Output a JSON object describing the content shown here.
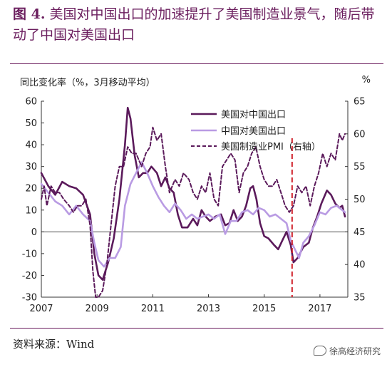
{
  "title": {
    "lead": "图 4.",
    "text": "美国对中国出口的加速提升了美国制造业景气，随后带动了中国对美国出口"
  },
  "source": "资料来源：Wind",
  "watermark": "徐高经济研究",
  "chart_data": {
    "type": "line",
    "left_axis_label": "同比变化率（%，3月移动平均）",
    "right_axis_label": "%",
    "ylim_left": [
      -30,
      60
    ],
    "yticks_left": [
      -30,
      -20,
      -10,
      0,
      10,
      20,
      30,
      40,
      50,
      60
    ],
    "ylim_right": [
      35,
      65
    ],
    "yticks_right": [
      35,
      40,
      45,
      50,
      55,
      60,
      65
    ],
    "xlim": [
      2007,
      2018
    ],
    "xticks": [
      "2007",
      "2009",
      "2011",
      "2013",
      "2015",
      "2017"
    ],
    "grid": false,
    "legend_position": "top-center",
    "vline": {
      "x": 2016.0,
      "color": "#d0202a",
      "style": "dashed"
    },
    "series": [
      {
        "name": "美国对中国出口",
        "axis": "left",
        "color": "#5b1a5b",
        "style": "solid",
        "points": [
          [
            2007.0,
            27
          ],
          [
            2007.25,
            21
          ],
          [
            2007.5,
            17
          ],
          [
            2007.75,
            23
          ],
          [
            2008.0,
            21
          ],
          [
            2008.25,
            20
          ],
          [
            2008.5,
            17
          ],
          [
            2008.75,
            8
          ],
          [
            2008.9,
            -10
          ],
          [
            2009.05,
            -20
          ],
          [
            2009.2,
            -22
          ],
          [
            2009.4,
            -14
          ],
          [
            2009.6,
            -3
          ],
          [
            2009.8,
            15
          ],
          [
            2010.0,
            40
          ],
          [
            2010.1,
            57
          ],
          [
            2010.2,
            52
          ],
          [
            2010.35,
            35
          ],
          [
            2010.5,
            25
          ],
          [
            2010.65,
            27
          ],
          [
            2010.8,
            27
          ],
          [
            2010.95,
            30
          ],
          [
            2011.15,
            27
          ],
          [
            2011.3,
            21
          ],
          [
            2011.45,
            25
          ],
          [
            2011.6,
            20
          ],
          [
            2011.75,
            18
          ],
          [
            2011.9,
            8
          ],
          [
            2012.05,
            2
          ],
          [
            2012.25,
            2
          ],
          [
            2012.45,
            6
          ],
          [
            2012.6,
            3
          ],
          [
            2012.75,
            10
          ],
          [
            2012.9,
            7
          ],
          [
            2013.05,
            5
          ],
          [
            2013.25,
            7
          ],
          [
            2013.45,
            8
          ],
          [
            2013.6,
            3
          ],
          [
            2013.75,
            4
          ],
          [
            2013.9,
            10
          ],
          [
            2014.05,
            5
          ],
          [
            2014.2,
            7
          ],
          [
            2014.35,
            12
          ],
          [
            2014.5,
            20
          ],
          [
            2014.6,
            21
          ],
          [
            2014.72,
            15
          ],
          [
            2014.85,
            4
          ],
          [
            2015.0,
            -2
          ],
          [
            2015.15,
            -3
          ],
          [
            2015.35,
            -6
          ],
          [
            2015.5,
            -8
          ],
          [
            2015.65,
            -4
          ],
          [
            2015.8,
            0
          ],
          [
            2015.95,
            -6
          ],
          [
            2016.05,
            -14
          ],
          [
            2016.2,
            -12
          ],
          [
            2016.4,
            -7
          ],
          [
            2016.6,
            -5
          ],
          [
            2016.75,
            2
          ],
          [
            2016.9,
            7
          ],
          [
            2017.05,
            13
          ],
          [
            2017.25,
            19
          ],
          [
            2017.4,
            17
          ],
          [
            2017.55,
            13
          ],
          [
            2017.7,
            11
          ],
          [
            2017.8,
            12
          ],
          [
            2017.9,
            7
          ]
        ]
      },
      {
        "name": "中国对美国出口",
        "axis": "left",
        "color": "#b99be3",
        "style": "solid",
        "points": [
          [
            2007.0,
            22
          ],
          [
            2007.25,
            18
          ],
          [
            2007.5,
            14
          ],
          [
            2007.75,
            12
          ],
          [
            2008.0,
            8
          ],
          [
            2008.25,
            12
          ],
          [
            2008.5,
            8
          ],
          [
            2008.75,
            5
          ],
          [
            2008.9,
            -5
          ],
          [
            2009.05,
            -13
          ],
          [
            2009.25,
            -16
          ],
          [
            2009.45,
            -12
          ],
          [
            2009.65,
            -12
          ],
          [
            2009.85,
            -7
          ],
          [
            2010.0,
            12
          ],
          [
            2010.2,
            22
          ],
          [
            2010.4,
            27
          ],
          [
            2010.6,
            32
          ],
          [
            2010.8,
            27
          ],
          [
            2011.0,
            21
          ],
          [
            2011.2,
            16
          ],
          [
            2011.4,
            12
          ],
          [
            2011.6,
            9
          ],
          [
            2011.8,
            13
          ],
          [
            2012.0,
            10
          ],
          [
            2012.2,
            6
          ],
          [
            2012.4,
            8
          ],
          [
            2012.6,
            6
          ],
          [
            2012.8,
            7
          ],
          [
            2013.0,
            8
          ],
          [
            2013.2,
            6
          ],
          [
            2013.4,
            8
          ],
          [
            2013.6,
            -1
          ],
          [
            2013.8,
            5
          ],
          [
            2014.0,
            5
          ],
          [
            2014.2,
            9
          ],
          [
            2014.4,
            10
          ],
          [
            2014.6,
            8
          ],
          [
            2014.8,
            11
          ],
          [
            2015.0,
            10
          ],
          [
            2015.2,
            7
          ],
          [
            2015.4,
            8
          ],
          [
            2015.6,
            6
          ],
          [
            2015.8,
            4
          ],
          [
            2015.95,
            -4
          ],
          [
            2016.1,
            -8
          ],
          [
            2016.25,
            -12
          ],
          [
            2016.4,
            -5
          ],
          [
            2016.6,
            -2
          ],
          [
            2016.8,
            3
          ],
          [
            2017.0,
            9
          ],
          [
            2017.2,
            8
          ],
          [
            2017.4,
            11
          ],
          [
            2017.6,
            12
          ],
          [
            2017.8,
            10
          ],
          [
            2017.9,
            9
          ]
        ]
      },
      {
        "name": "美国制造业PMI（右轴）",
        "axis": "right",
        "color": "#5b1a5b",
        "style": "dashed",
        "points": [
          [
            2007.0,
            50
          ],
          [
            2007.1,
            52
          ],
          [
            2007.2,
            49
          ],
          [
            2007.35,
            52
          ],
          [
            2007.5,
            51
          ],
          [
            2007.65,
            51
          ],
          [
            2007.8,
            50
          ],
          [
            2008.0,
            49
          ],
          [
            2008.15,
            48
          ],
          [
            2008.3,
            49
          ],
          [
            2008.45,
            49
          ],
          [
            2008.6,
            50
          ],
          [
            2008.75,
            46
          ],
          [
            2008.85,
            39
          ],
          [
            2008.95,
            35
          ],
          [
            2009.05,
            35
          ],
          [
            2009.2,
            36
          ],
          [
            2009.35,
            40
          ],
          [
            2009.5,
            46
          ],
          [
            2009.65,
            52
          ],
          [
            2009.8,
            55
          ],
          [
            2009.95,
            55
          ],
          [
            2010.1,
            58
          ],
          [
            2010.25,
            57
          ],
          [
            2010.4,
            57
          ],
          [
            2010.6,
            55
          ],
          [
            2010.75,
            57
          ],
          [
            2010.9,
            58
          ],
          [
            2011.0,
            61
          ],
          [
            2011.15,
            59
          ],
          [
            2011.3,
            60
          ],
          [
            2011.45,
            55
          ],
          [
            2011.6,
            51
          ],
          [
            2011.8,
            53
          ],
          [
            2011.95,
            52
          ],
          [
            2012.1,
            54
          ],
          [
            2012.3,
            53
          ],
          [
            2012.45,
            51
          ],
          [
            2012.6,
            50
          ],
          [
            2012.75,
            52
          ],
          [
            2012.9,
            51
          ],
          [
            2013.05,
            54
          ],
          [
            2013.2,
            50
          ],
          [
            2013.35,
            49
          ],
          [
            2013.5,
            55
          ],
          [
            2013.65,
            56
          ],
          [
            2013.8,
            57
          ],
          [
            2013.95,
            56
          ],
          [
            2014.1,
            51
          ],
          [
            2014.25,
            54
          ],
          [
            2014.4,
            55
          ],
          [
            2014.55,
            57
          ],
          [
            2014.7,
            58
          ],
          [
            2014.85,
            55
          ],
          [
            2015.0,
            53
          ],
          [
            2015.15,
            52
          ],
          [
            2015.3,
            52
          ],
          [
            2015.45,
            53
          ],
          [
            2015.6,
            51
          ],
          [
            2015.75,
            49
          ],
          [
            2015.9,
            48
          ],
          [
            2016.05,
            49
          ],
          [
            2016.2,
            52
          ],
          [
            2016.35,
            51
          ],
          [
            2016.5,
            52
          ],
          [
            2016.65,
            49
          ],
          [
            2016.8,
            52
          ],
          [
            2016.95,
            54
          ],
          [
            2017.1,
            57
          ],
          [
            2017.25,
            55
          ],
          [
            2017.4,
            57
          ],
          [
            2017.55,
            56
          ],
          [
            2017.7,
            60
          ],
          [
            2017.8,
            59
          ],
          [
            2017.9,
            60
          ]
        ]
      }
    ]
  }
}
